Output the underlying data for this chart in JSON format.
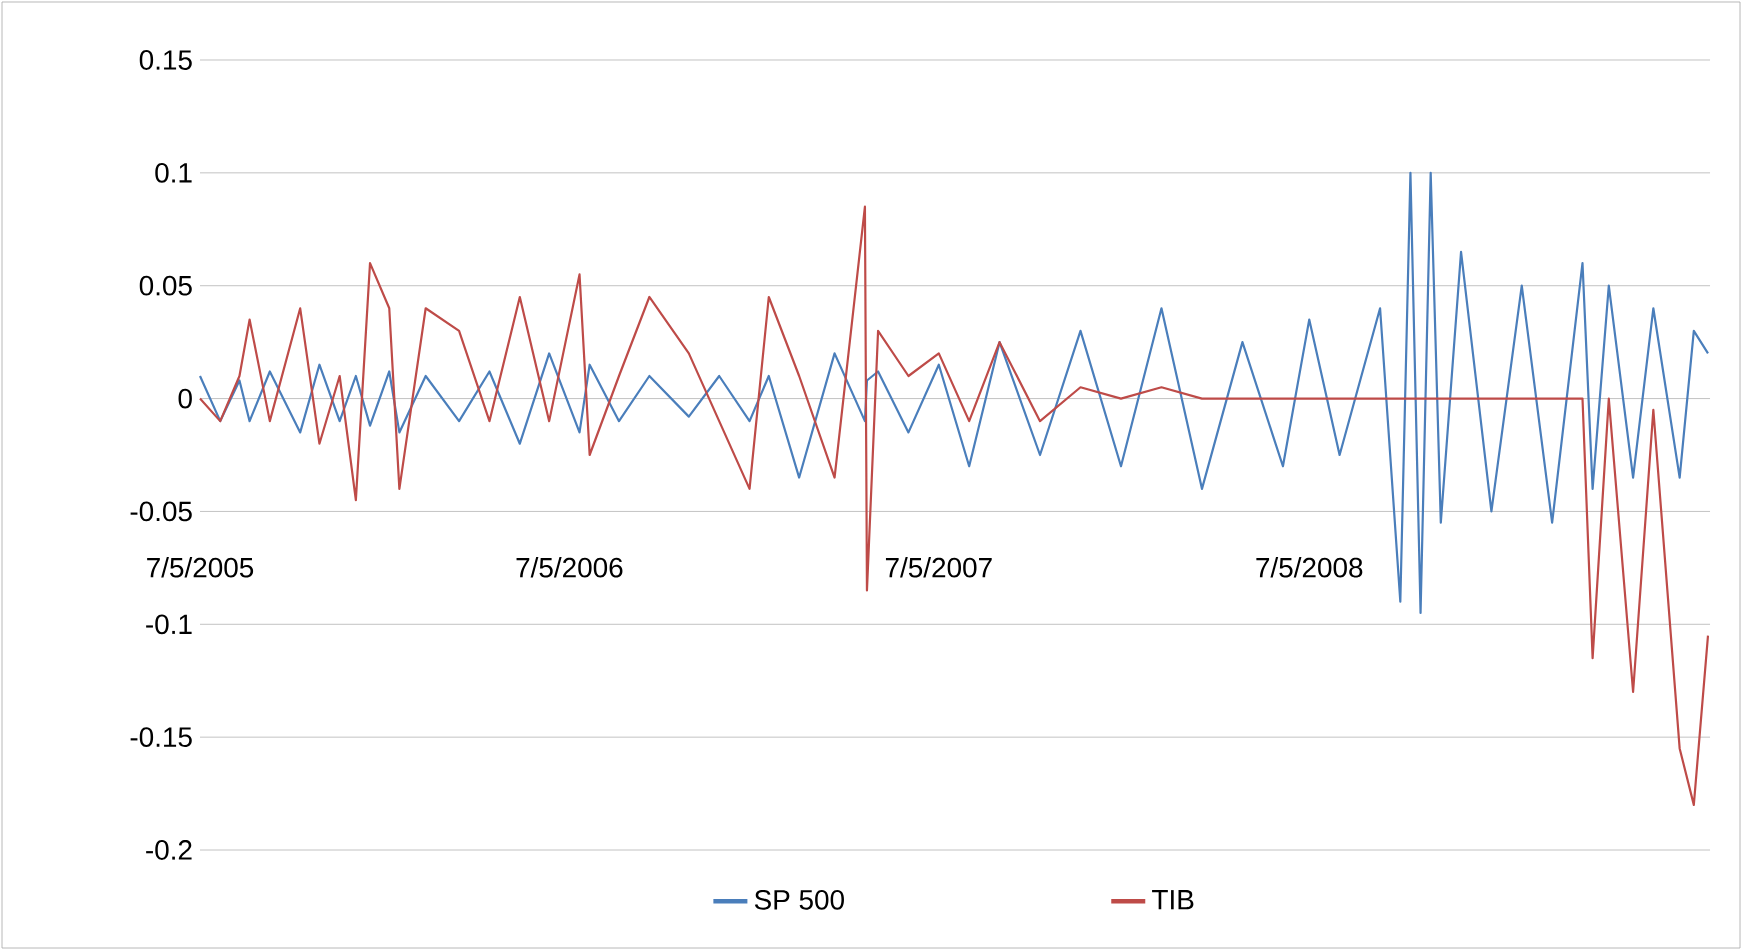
{
  "chart_data": {
    "type": "line",
    "x": [
      "2005-07-05",
      "2005-07-25",
      "2005-08-13",
      "2005-08-23",
      "2005-09-12",
      "2005-10-12",
      "2005-10-31",
      "2005-11-20",
      "2005-12-06",
      "2005-12-20",
      "2006-01-08",
      "2006-01-18",
      "2006-02-13",
      "2006-03-18",
      "2006-04-17",
      "2006-05-17",
      "2006-06-15",
      "2006-07-15",
      "2006-07-25",
      "2006-08-23",
      "2006-09-22",
      "2006-10-31",
      "2006-11-30",
      "2006-12-30",
      "2007-01-18",
      "2007-02-17",
      "2007-03-24",
      "2007-04-23",
      "2007-04-25",
      "2007-05-06",
      "2007-06-05",
      "2007-07-05",
      "2007-08-04",
      "2007-09-03",
      "2007-10-13",
      "2007-11-22",
      "2008-01-01",
      "2008-02-10",
      "2008-03-21",
      "2008-04-30",
      "2008-06-09",
      "2008-07-05",
      "2008-08-04",
      "2008-09-13",
      "2008-10-03",
      "2008-10-13",
      "2008-10-23",
      "2008-11-02",
      "2008-11-12",
      "2008-12-02",
      "2009-01-01",
      "2009-01-31",
      "2009-03-02",
      "2009-04-01",
      "2009-04-11",
      "2009-04-27",
      "2009-05-21",
      "2009-06-10",
      "2009-07-06",
      "2009-07-20",
      "2009-08-03"
    ],
    "series": [
      {
        "name": "SP 500",
        "color": "#4a7ebb",
        "values": [
          0.01,
          -0.01,
          0.008,
          -0.01,
          0.012,
          -0.015,
          0.015,
          -0.01,
          0.01,
          -0.012,
          0.012,
          -0.015,
          0.01,
          -0.01,
          0.012,
          -0.02,
          0.02,
          -0.015,
          0.015,
          -0.01,
          0.01,
          -0.008,
          0.01,
          -0.01,
          0.01,
          -0.035,
          0.02,
          -0.01,
          0.008,
          0.012,
          -0.015,
          0.015,
          -0.03,
          0.025,
          -0.025,
          0.03,
          -0.03,
          0.04,
          -0.04,
          0.025,
          -0.03,
          0.035,
          -0.025,
          0.04,
          -0.09,
          0.1,
          -0.095,
          0.1,
          -0.055,
          0.065,
          -0.05,
          0.05,
          -0.055,
          0.06,
          -0.04,
          0.05,
          -0.035,
          0.04,
          -0.035,
          0.03,
          0.02
        ]
      },
      {
        "name": "TIB",
        "color": "#be4b48",
        "values": [
          0,
          -0.01,
          0.01,
          0.035,
          -0.01,
          0.04,
          -0.02,
          0.01,
          -0.045,
          0.06,
          0.04,
          -0.04,
          0.04,
          0.03,
          -0.01,
          0.045,
          -0.01,
          0.055,
          -0.025,
          0.01,
          0.045,
          0.02,
          -0.01,
          -0.04,
          0.045,
          0.01,
          -0.035,
          0.085,
          -0.085,
          0.03,
          0.01,
          0.02,
          -0.01,
          0.025,
          -0.01,
          0.005,
          0,
          0.005,
          0,
          0,
          0,
          0,
          0,
          0,
          0,
          0,
          0,
          0,
          0,
          0,
          0,
          0,
          0,
          0,
          -0.115,
          0,
          -0.13,
          -0.005,
          -0.155,
          -0.18,
          -0.105
        ]
      }
    ],
    "xlim": [
      "2005-07-05",
      "2009-08-05"
    ],
    "xticks": [
      {
        "value": "2005-07-05",
        "label": "7/5/2005"
      },
      {
        "value": "2006-07-05",
        "label": "7/5/2006"
      },
      {
        "value": "2007-07-05",
        "label": "7/5/2007"
      },
      {
        "value": "2008-07-05",
        "label": "7/5/2008"
      }
    ],
    "ylim": [
      -0.2,
      0.15
    ],
    "yticks": [
      -0.2,
      -0.15,
      -0.1,
      -0.05,
      0,
      0.05,
      0.1,
      0.15
    ],
    "grid": "y",
    "legend": "bottom",
    "marker": "none",
    "line_style": "solid"
  }
}
